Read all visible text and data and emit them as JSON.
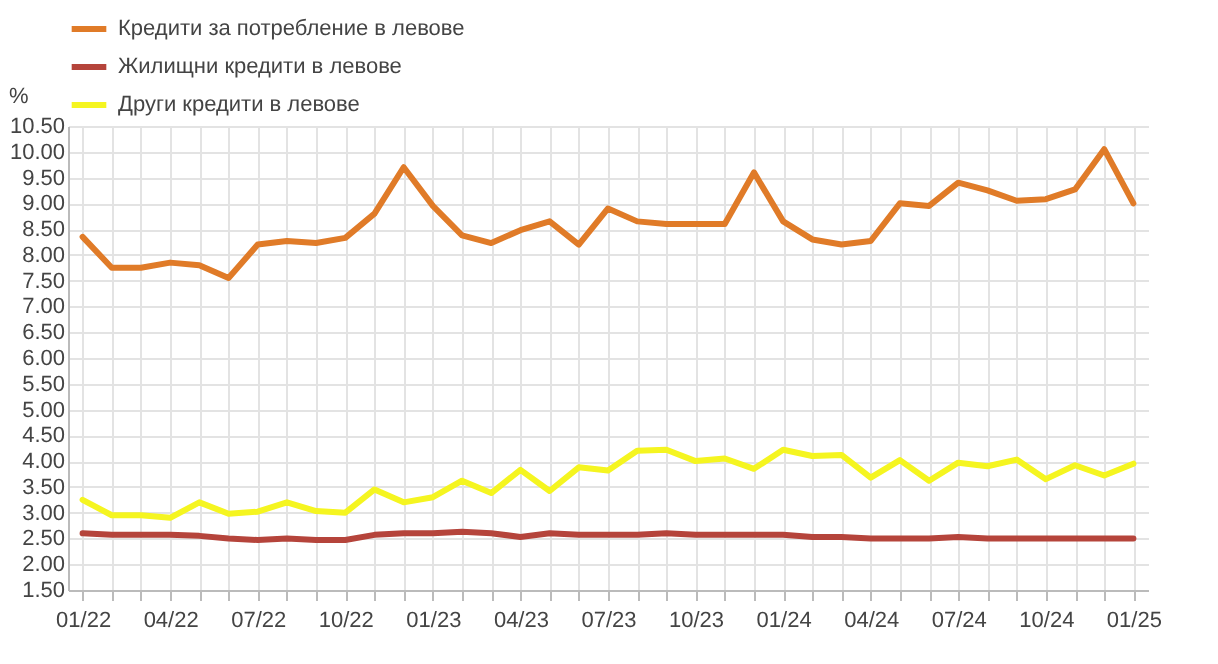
{
  "chart_data": {
    "type": "line",
    "ylabel": "%",
    "categories": [
      "01/22",
      null,
      null,
      "04/22",
      null,
      null,
      "07/22",
      null,
      null,
      "10/22",
      null,
      null,
      "01/23",
      null,
      null,
      "04/23",
      null,
      null,
      "07/23",
      null,
      null,
      "10/23",
      null,
      null,
      "01/24",
      null,
      null,
      "04/24",
      null,
      null,
      "07/24",
      null,
      null,
      "10/24",
      null,
      null,
      "01/25"
    ],
    "series": [
      {
        "name": "Кредити за потребление в левове",
        "color": "#e07b28",
        "values": [
          8.35,
          7.75,
          7.75,
          7.85,
          7.8,
          7.55,
          8.2,
          8.27,
          8.23,
          8.33,
          8.8,
          9.7,
          8.95,
          8.38,
          8.23,
          8.48,
          8.65,
          8.2,
          8.9,
          8.65,
          8.6,
          8.6,
          8.6,
          9.6,
          8.65,
          8.3,
          8.2,
          8.27,
          9.0,
          8.95,
          9.4,
          9.25,
          9.05,
          9.08,
          9.27,
          10.05,
          9.0
        ]
      },
      {
        "name": "Жилищни кредити в левове",
        "color": "#b5443b",
        "values": [
          2.6,
          2.57,
          2.57,
          2.57,
          2.55,
          2.5,
          2.47,
          2.5,
          2.47,
          2.47,
          2.57,
          2.6,
          2.6,
          2.63,
          2.6,
          2.53,
          2.6,
          2.57,
          2.57,
          2.57,
          2.6,
          2.57,
          2.57,
          2.57,
          2.57,
          2.53,
          2.53,
          2.5,
          2.5,
          2.5,
          2.53,
          2.5,
          2.5,
          2.5,
          2.5,
          2.5,
          2.5
        ]
      },
      {
        "name": "Други кредити в левове",
        "color": "#f5f520",
        "values": [
          3.25,
          2.95,
          2.95,
          2.9,
          3.2,
          2.98,
          3.02,
          3.2,
          3.03,
          3.0,
          3.45,
          3.2,
          3.3,
          3.62,
          3.38,
          3.83,
          3.42,
          3.88,
          3.82,
          4.2,
          4.22,
          4.0,
          4.05,
          3.85,
          4.22,
          4.1,
          4.12,
          3.68,
          4.02,
          3.62,
          3.97,
          3.9,
          4.03,
          3.65,
          3.92,
          3.72,
          3.95
        ]
      }
    ],
    "ylim": [
      1.5,
      10.5
    ],
    "yticks": [
      {
        "value": 1.5,
        "label": "1.50"
      },
      {
        "value": 2,
        "label": "2.00"
      },
      {
        "value": 2.5,
        "label": "2.50"
      },
      {
        "value": 3,
        "label": "3.00"
      },
      {
        "value": 3.5,
        "label": "3.50"
      },
      {
        "value": 4,
        "label": "4.00"
      },
      {
        "value": 4.5,
        "label": "4.50"
      },
      {
        "value": 5,
        "label": "5.00"
      },
      {
        "value": 5.5,
        "label": "5.50"
      },
      {
        "value": 6,
        "label": "6.00"
      },
      {
        "value": 6.5,
        "label": "6.50"
      },
      {
        "value": 7,
        "label": "7.00"
      },
      {
        "value": 7.5,
        "label": "7.50"
      },
      {
        "value": 8,
        "label": "8.00"
      },
      {
        "value": 8.5,
        "label": "8.50"
      },
      {
        "value": 9,
        "label": "9.00"
      },
      {
        "value": 9.5,
        "label": "9.50"
      },
      {
        "value": 10,
        "label": "10.00"
      },
      {
        "value": 10.5,
        "label": "10.50"
      }
    ],
    "grid": true,
    "legend": "top",
    "marker": "none",
    "line_style": "solid"
  }
}
